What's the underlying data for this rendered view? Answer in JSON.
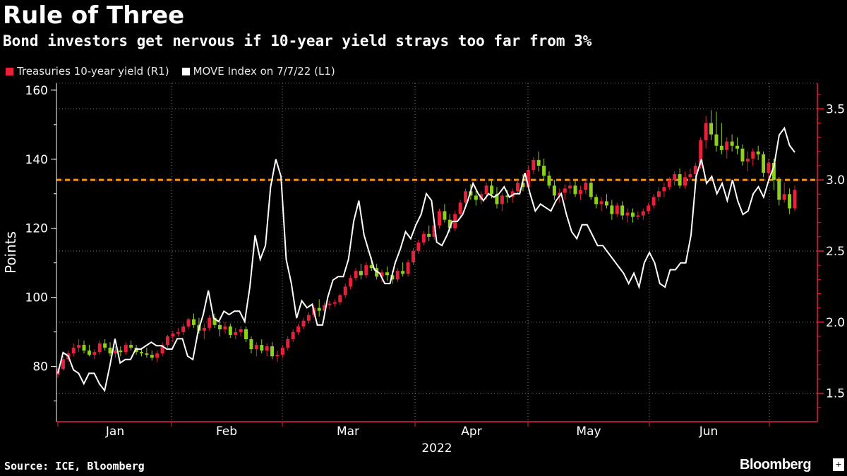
{
  "title": "Rule of Three",
  "subtitle": "Bond investors get nervous if 10-year yield strays too far from 3%",
  "legend": [
    {
      "label": "Treasuries 10-year yield (R1)",
      "color": "#e8203a"
    },
    {
      "label": "MOVE Index on 7/7/22 (L1)",
      "color": "#ffffff"
    }
  ],
  "source": "Source: ICE, Bloomberg",
  "brand": "Bloomberg",
  "brand_mark": "+",
  "chart_data": {
    "type": "line",
    "left_axis": {
      "label": "Points",
      "ticks": [
        80,
        100,
        120,
        140,
        160
      ],
      "range": [
        64,
        162
      ]
    },
    "right_axis": {
      "ticks": [
        "1.5",
        "2.0",
        "2.5",
        "3.0",
        "3.5"
      ],
      "range": [
        1.3,
        3.68
      ]
    },
    "x_labels": [
      "Jan",
      "Feb",
      "Mar",
      "Apr",
      "May",
      "Jun"
    ],
    "x_sublabel": "2022",
    "reference_line": {
      "value": 3.0,
      "axis": "right",
      "color": "#f7941d"
    },
    "colors": {
      "up": "#e8203a",
      "down": "#8ed11c",
      "line": "#ffffff",
      "axis": "#e8203a"
    },
    "series": [
      {
        "name": "MOVE Index on 7/7/22 (L1)",
        "axis": "left",
        "values": [
          78,
          84,
          83,
          79,
          78,
          75,
          78,
          78,
          75,
          73,
          80,
          88,
          81,
          82,
          82,
          85,
          85,
          86,
          87,
          86,
          86,
          85,
          85,
          88,
          88,
          83,
          82,
          90,
          95,
          102,
          94,
          93,
          96,
          95,
          96,
          96,
          93,
          103,
          118,
          111,
          115,
          132,
          140,
          135,
          111,
          104,
          94,
          99,
          97,
          98,
          92,
          92,
          100,
          105,
          106,
          106,
          111,
          122,
          128,
          118,
          113,
          108,
          107,
          104,
          104,
          110,
          114,
          119,
          117,
          121,
          124,
          130,
          128,
          116,
          115,
          118,
          122,
          122,
          124,
          128,
          133,
          130,
          128,
          130,
          129,
          130,
          132,
          129,
          130,
          130,
          136,
          130,
          125,
          127,
          126,
          125,
          128,
          130,
          124,
          119,
          117,
          121,
          121,
          118,
          115,
          115,
          113,
          111,
          109,
          107,
          104,
          107,
          103,
          110,
          113,
          110,
          104,
          103,
          108,
          108,
          110,
          110,
          118,
          135,
          140,
          133,
          135,
          130,
          133,
          128,
          134,
          128,
          124,
          125,
          130,
          132,
          129,
          134,
          138,
          147,
          149,
          144,
          142
        ]
      },
      {
        "name": "Treasuries 10-year yield (R1)",
        "axis": "right",
        "ohlc": [
          [
            1.63,
            1.68,
            1.61,
            1.67
          ],
          [
            1.67,
            1.76,
            1.66,
            1.74
          ],
          [
            1.74,
            1.8,
            1.72,
            1.78
          ],
          [
            1.78,
            1.85,
            1.76,
            1.82
          ],
          [
            1.82,
            1.88,
            1.79,
            1.84
          ],
          [
            1.84,
            1.87,
            1.78,
            1.8
          ],
          [
            1.8,
            1.84,
            1.76,
            1.77
          ],
          [
            1.77,
            1.81,
            1.74,
            1.79
          ],
          [
            1.79,
            1.87,
            1.77,
            1.85
          ],
          [
            1.85,
            1.88,
            1.8,
            1.82
          ],
          [
            1.82,
            1.86,
            1.76,
            1.78
          ],
          [
            1.78,
            1.83,
            1.75,
            1.8
          ],
          [
            1.8,
            1.83,
            1.76,
            1.79
          ],
          [
            1.79,
            1.86,
            1.77,
            1.84
          ],
          [
            1.84,
            1.87,
            1.8,
            1.82
          ],
          [
            1.82,
            1.84,
            1.77,
            1.79
          ],
          [
            1.79,
            1.82,
            1.76,
            1.78
          ],
          [
            1.78,
            1.82,
            1.75,
            1.77
          ],
          [
            1.77,
            1.8,
            1.73,
            1.75
          ],
          [
            1.75,
            1.8,
            1.72,
            1.78
          ],
          [
            1.78,
            1.86,
            1.76,
            1.84
          ],
          [
            1.84,
            1.91,
            1.82,
            1.9
          ],
          [
            1.9,
            1.94,
            1.86,
            1.92
          ],
          [
            1.92,
            1.96,
            1.9,
            1.93
          ],
          [
            1.93,
            1.99,
            1.91,
            1.97
          ],
          [
            1.97,
            2.03,
            1.95,
            2.02
          ],
          [
            2.02,
            2.06,
            1.96,
            1.98
          ],
          [
            1.98,
            2.03,
            1.92,
            1.94
          ],
          [
            1.94,
            1.99,
            1.88,
            1.96
          ],
          [
            1.96,
            2.05,
            1.94,
            2.03
          ],
          [
            2.03,
            2.06,
            1.96,
            1.98
          ],
          [
            1.98,
            2.0,
            1.9,
            1.95
          ],
          [
            1.95,
            2.0,
            1.92,
            1.97
          ],
          [
            1.97,
            1.99,
            1.89,
            1.91
          ],
          [
            1.91,
            1.96,
            1.88,
            1.93
          ],
          [
            1.93,
            1.97,
            1.9,
            1.95
          ],
          [
            1.95,
            1.97,
            1.86,
            1.88
          ],
          [
            1.88,
            1.9,
            1.78,
            1.81
          ],
          [
            1.81,
            1.86,
            1.76,
            1.84
          ],
          [
            1.84,
            1.88,
            1.78,
            1.8
          ],
          [
            1.8,
            1.85,
            1.76,
            1.83
          ],
          [
            1.83,
            1.86,
            1.74,
            1.76
          ],
          [
            1.76,
            1.8,
            1.72,
            1.77
          ],
          [
            1.77,
            1.84,
            1.75,
            1.82
          ],
          [
            1.82,
            1.9,
            1.8,
            1.88
          ],
          [
            1.88,
            1.95,
            1.86,
            1.93
          ],
          [
            1.93,
            1.99,
            1.91,
            1.97
          ],
          [
            1.97,
            2.03,
            1.95,
            2.01
          ],
          [
            2.01,
            2.07,
            1.99,
            2.05
          ],
          [
            2.05,
            2.12,
            2.03,
            2.1
          ],
          [
            2.1,
            2.16,
            2.04,
            2.08
          ],
          [
            2.08,
            2.14,
            2.06,
            2.12
          ],
          [
            2.12,
            2.15,
            2.09,
            2.13
          ],
          [
            2.13,
            2.16,
            2.11,
            2.14
          ],
          [
            2.14,
            2.2,
            2.12,
            2.19
          ],
          [
            2.19,
            2.27,
            2.17,
            2.25
          ],
          [
            2.25,
            2.33,
            2.23,
            2.31
          ],
          [
            2.31,
            2.38,
            2.29,
            2.36
          ],
          [
            2.36,
            2.41,
            2.3,
            2.33
          ],
          [
            2.33,
            2.42,
            2.31,
            2.4
          ],
          [
            2.4,
            2.46,
            2.36,
            2.38
          ],
          [
            2.38,
            2.41,
            2.3,
            2.32
          ],
          [
            2.32,
            2.37,
            2.28,
            2.35
          ],
          [
            2.35,
            2.39,
            2.29,
            2.33
          ],
          [
            2.33,
            2.36,
            2.27,
            2.3
          ],
          [
            2.3,
            2.38,
            2.28,
            2.36
          ],
          [
            2.36,
            2.42,
            2.32,
            2.34
          ],
          [
            2.34,
            2.44,
            2.32,
            2.42
          ],
          [
            2.42,
            2.52,
            2.4,
            2.5
          ],
          [
            2.5,
            2.58,
            2.48,
            2.56
          ],
          [
            2.56,
            2.64,
            2.54,
            2.62
          ],
          [
            2.62,
            2.68,
            2.57,
            2.6
          ],
          [
            2.6,
            2.7,
            2.58,
            2.68
          ],
          [
            2.68,
            2.8,
            2.66,
            2.78
          ],
          [
            2.78,
            2.83,
            2.7,
            2.72
          ],
          [
            2.72,
            2.76,
            2.63,
            2.66
          ],
          [
            2.66,
            2.78,
            2.64,
            2.76
          ],
          [
            2.76,
            2.86,
            2.74,
            2.84
          ],
          [
            2.84,
            2.94,
            2.82,
            2.92
          ],
          [
            2.92,
            2.97,
            2.86,
            2.89
          ],
          [
            2.89,
            2.93,
            2.82,
            2.86
          ],
          [
            2.86,
            2.92,
            2.83,
            2.9
          ],
          [
            2.9,
            2.98,
            2.86,
            2.96
          ],
          [
            2.96,
            3.0,
            2.87,
            2.9
          ],
          [
            2.9,
            2.95,
            2.8,
            2.83
          ],
          [
            2.83,
            2.91,
            2.78,
            2.89
          ],
          [
            2.89,
            2.93,
            2.84,
            2.88
          ],
          [
            2.88,
            2.94,
            2.84,
            2.92
          ],
          [
            2.92,
            3.0,
            2.9,
            2.98
          ],
          [
            2.98,
            3.04,
            2.92,
            2.95
          ],
          [
            2.95,
            3.1,
            2.94,
            3.07
          ],
          [
            3.07,
            3.16,
            3.04,
            3.14
          ],
          [
            3.14,
            3.2,
            3.06,
            3.1
          ],
          [
            3.1,
            3.15,
            3.0,
            3.03
          ],
          [
            3.03,
            3.06,
            2.94,
            2.96
          ],
          [
            2.96,
            3.0,
            2.86,
            2.89
          ],
          [
            2.89,
            2.94,
            2.84,
            2.91
          ],
          [
            2.91,
            2.97,
            2.86,
            2.94
          ],
          [
            2.94,
            2.99,
            2.9,
            2.96
          ],
          [
            2.96,
            3.0,
            2.88,
            2.9
          ],
          [
            2.9,
            2.96,
            2.86,
            2.93
          ],
          [
            2.93,
            3.0,
            2.9,
            2.98
          ],
          [
            2.98,
            3.01,
            2.86,
            2.88
          ],
          [
            2.88,
            2.9,
            2.8,
            2.83
          ],
          [
            2.83,
            2.88,
            2.78,
            2.85
          ],
          [
            2.85,
            2.9,
            2.8,
            2.82
          ],
          [
            2.82,
            2.86,
            2.72,
            2.76
          ],
          [
            2.76,
            2.84,
            2.74,
            2.82
          ],
          [
            2.82,
            2.85,
            2.72,
            2.75
          ],
          [
            2.75,
            2.8,
            2.7,
            2.77
          ],
          [
            2.77,
            2.8,
            2.7,
            2.74
          ],
          [
            2.74,
            2.78,
            2.72,
            2.75
          ],
          [
            2.75,
            2.8,
            2.72,
            2.78
          ],
          [
            2.78,
            2.84,
            2.76,
            2.82
          ],
          [
            2.82,
            2.9,
            2.8,
            2.88
          ],
          [
            2.88,
            2.95,
            2.85,
            2.92
          ],
          [
            2.92,
            2.98,
            2.88,
            2.95
          ],
          [
            2.95,
            3.02,
            2.93,
            3.0
          ],
          [
            3.0,
            3.06,
            2.96,
            3.04
          ],
          [
            3.04,
            3.08,
            2.94,
            2.96
          ],
          [
            2.96,
            3.06,
            2.94,
            3.02
          ],
          [
            3.02,
            3.08,
            3.0,
            3.04
          ],
          [
            3.04,
            3.12,
            3.02,
            3.1
          ],
          [
            3.1,
            3.3,
            3.08,
            3.28
          ],
          [
            3.28,
            3.45,
            3.22,
            3.4
          ],
          [
            3.4,
            3.49,
            3.28,
            3.32
          ],
          [
            3.32,
            3.48,
            3.2,
            3.24
          ],
          [
            3.24,
            3.4,
            3.18,
            3.21
          ],
          [
            3.21,
            3.3,
            3.15,
            3.27
          ],
          [
            3.27,
            3.32,
            3.2,
            3.24
          ],
          [
            3.24,
            3.3,
            3.18,
            3.22
          ],
          [
            3.22,
            3.25,
            3.1,
            3.13
          ],
          [
            3.13,
            3.2,
            3.06,
            3.15
          ],
          [
            3.15,
            3.22,
            3.1,
            3.2
          ],
          [
            3.2,
            3.24,
            3.14,
            3.18
          ],
          [
            3.18,
            3.2,
            3.02,
            3.05
          ],
          [
            3.05,
            3.15,
            3.0,
            3.12
          ],
          [
            3.12,
            3.15,
            2.93,
            3.0
          ],
          [
            3.0,
            3.02,
            2.82,
            2.86
          ],
          [
            2.86,
            2.98,
            2.84,
            2.9
          ],
          [
            2.9,
            2.94,
            2.76,
            2.8
          ],
          [
            2.8,
            2.96,
            2.78,
            2.93
          ]
        ]
      }
    ]
  }
}
